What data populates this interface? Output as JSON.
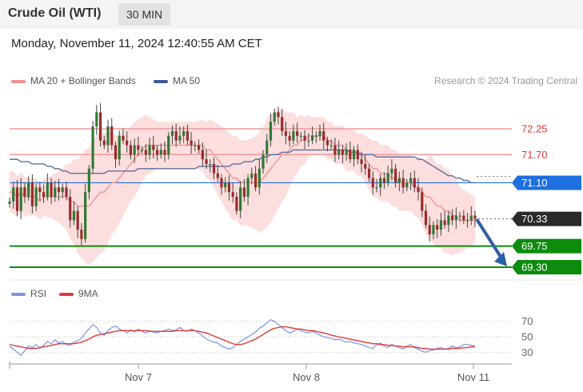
{
  "header": {
    "title": "Crude Oil (WTI)",
    "timeframe": "30 MIN"
  },
  "datetime": "Monday, November 11, 2024 12:40:55 AM CET",
  "legend": {
    "ma20_label": "MA 20 + Bollinger Bands",
    "ma50_label": "MA 50",
    "credit": "Research © 2024 Trading Central",
    "rsi_label": "RSI",
    "ma9_label": "9MA"
  },
  "colors": {
    "ma20": "#f08f8f",
    "bands": "#fcd8d8",
    "ma50": "#5b6f9e",
    "bull": "#2f7a33",
    "bear": "#9c2b2b",
    "support": "#0d8b0d",
    "pivot": "#1e6fe0",
    "last": "#2a2a2a",
    "resistance": "#ef9a9a",
    "rsi": "#7c95e6",
    "ma9": "#e03a3a",
    "arrow": "#2f5ea8"
  },
  "chart_data": {
    "type": "candlestick",
    "x_ticks": [
      "Nov 7",
      "Nov 8",
      "Nov 11"
    ],
    "levels": [
      {
        "name": "resistance-2",
        "value": 72.25,
        "label": "72.25",
        "kind": "resistance"
      },
      {
        "name": "resistance-1",
        "value": 71.7,
        "label": "71.70",
        "kind": "resistance"
      },
      {
        "name": "pivot",
        "value": 71.1,
        "label": "71.10",
        "kind": "pivot"
      },
      {
        "name": "last-price",
        "value": 70.33,
        "label": "70.33",
        "kind": "last"
      },
      {
        "name": "support-1",
        "value": 69.75,
        "label": "69.75",
        "kind": "support"
      },
      {
        "name": "support-2",
        "value": 69.3,
        "label": "69.30",
        "kind": "support"
      }
    ],
    "close": [
      70.7,
      71.0,
      70.5,
      71.0,
      70.8,
      71.1,
      70.6,
      71.0,
      70.9,
      70.8,
      71.1,
      70.8,
      71.0,
      70.9,
      71.0,
      70.8,
      70.3,
      70.5,
      70.1,
      69.9,
      70.9,
      71.4,
      72.3,
      72.6,
      72.0,
      71.9,
      72.3,
      71.9,
      71.6,
      72.1,
      72.0,
      71.9,
      71.7,
      71.9,
      71.8,
      71.8,
      71.7,
      71.9,
      71.8,
      71.7,
      71.8,
      71.7,
      72.1,
      72.2,
      72.0,
      72.1,
      72.2,
      72.0,
      71.9,
      71.9,
      71.8,
      71.6,
      71.5,
      71.5,
      71.3,
      71.2,
      71.0,
      71.1,
      70.9,
      70.8,
      70.5,
      71.0,
      70.8,
      71.2,
      71.3,
      71.0,
      71.4,
      71.7,
      72.0,
      72.4,
      72.6,
      72.5,
      72.2,
      72.1,
      72.0,
      72.2,
      72.1,
      72.1,
      72.0,
      72.0,
      72.1,
      72.1,
      72.2,
      72.0,
      71.9,
      71.9,
      71.7,
      71.8,
      71.7,
      71.8,
      71.6,
      71.8,
      71.6,
      71.5,
      71.4,
      71.2,
      71.0,
      71.0,
      71.2,
      71.1,
      71.3,
      71.4,
      71.1,
      71.2,
      71.0,
      71.1,
      71.2,
      71.0,
      70.9,
      70.5,
      70.2,
      70.0,
      70.2,
      70.1,
      70.3,
      70.2,
      70.4,
      70.3,
      70.4,
      70.4,
      70.3,
      70.3,
      70.4,
      70.33
    ],
    "ma20": [
      70.9,
      70.9,
      70.8,
      70.9,
      70.8,
      70.8,
      70.8,
      70.8,
      70.7,
      70.8,
      70.8,
      70.8,
      70.8,
      70.8,
      70.8,
      70.8,
      70.7,
      70.7,
      70.6,
      70.6,
      70.6,
      70.6,
      70.7,
      70.8,
      70.9,
      70.9,
      71.0,
      71.1,
      71.1,
      71.2,
      71.3,
      71.4,
      71.5,
      71.6,
      71.7,
      71.8,
      71.9,
      71.9,
      71.9,
      71.9,
      71.9,
      71.9,
      71.9,
      71.9,
      71.9,
      71.9,
      71.9,
      71.9,
      71.9,
      71.9,
      71.9,
      71.9,
      71.8,
      71.8,
      71.7,
      71.6,
      71.5,
      71.4,
      71.3,
      71.2,
      71.2,
      71.1,
      71.1,
      71.1,
      71.1,
      71.1,
      71.1,
      71.2,
      71.3,
      71.4,
      71.5,
      71.6,
      71.7,
      71.7,
      71.8,
      71.9,
      71.9,
      72.0,
      72.0,
      72.1,
      72.1,
      72.1,
      72.1,
      72.1,
      72.0,
      72.0,
      71.9,
      71.9,
      71.9,
      71.8,
      71.8,
      71.8,
      71.7,
      71.7,
      71.6,
      71.5,
      71.4,
      71.4,
      71.3,
      71.3,
      71.3,
      71.2,
      71.2,
      71.1,
      71.1,
      71.1,
      71.1,
      71.0,
      71.0,
      70.9,
      70.8,
      70.8,
      70.7,
      70.6,
      70.6,
      70.5,
      70.5,
      70.4,
      70.4,
      70.3,
      70.3,
      70.3,
      70.3,
      70.3
    ],
    "band_width": [
      0.45,
      0.45,
      0.44,
      0.43,
      0.42,
      0.4,
      0.4,
      0.4,
      0.4,
      0.4,
      0.42,
      0.45,
      0.5,
      0.55,
      0.62,
      0.7,
      0.8,
      0.9,
      1.0,
      1.1,
      1.2,
      1.25,
      1.3,
      1.3,
      1.3,
      1.25,
      1.2,
      1.1,
      1.0,
      0.95,
      0.9,
      0.85,
      0.8,
      0.8,
      0.75,
      0.7,
      0.65,
      0.6,
      0.55,
      0.5,
      0.5,
      0.5,
      0.5,
      0.5,
      0.5,
      0.5,
      0.5,
      0.5,
      0.5,
      0.5,
      0.52,
      0.55,
      0.6,
      0.65,
      0.7,
      0.75,
      0.8,
      0.85,
      0.88,
      0.9,
      0.9,
      0.9,
      0.9,
      0.92,
      0.95,
      1.0,
      1.05,
      1.1,
      1.15,
      1.15,
      1.1,
      1.05,
      1.0,
      0.9,
      0.8,
      0.7,
      0.6,
      0.55,
      0.5,
      0.45,
      0.4,
      0.4,
      0.4,
      0.4,
      0.4,
      0.4,
      0.4,
      0.4,
      0.42,
      0.45,
      0.45,
      0.45,
      0.45,
      0.45,
      0.5,
      0.55,
      0.6,
      0.6,
      0.6,
      0.6,
      0.6,
      0.6,
      0.6,
      0.6,
      0.6,
      0.6,
      0.6,
      0.6,
      0.65,
      0.7,
      0.8,
      0.9,
      0.9,
      0.9,
      0.9,
      0.9,
      0.9,
      0.85,
      0.8,
      0.7,
      0.65,
      0.6,
      0.55,
      0.5
    ],
    "ma50": [
      71.6,
      71.6,
      71.6,
      71.55,
      71.55,
      71.55,
      71.5,
      71.5,
      71.5,
      71.5,
      71.45,
      71.45,
      71.4,
      71.4,
      71.35,
      71.35,
      71.3,
      71.3,
      71.3,
      71.3,
      71.3,
      71.3,
      71.3,
      71.3,
      71.3,
      71.3,
      71.35,
      71.35,
      71.35,
      71.35,
      71.35,
      71.35,
      71.35,
      71.35,
      71.4,
      71.4,
      71.4,
      71.4,
      71.4,
      71.4,
      71.4,
      71.4,
      71.4,
      71.4,
      71.4,
      71.4,
      71.4,
      71.4,
      71.4,
      71.4,
      71.45,
      71.45,
      71.45,
      71.45,
      71.45,
      71.45,
      71.45,
      71.45,
      71.45,
      71.5,
      71.5,
      71.5,
      71.55,
      71.55,
      71.55,
      71.6,
      71.6,
      71.65,
      71.65,
      71.7,
      71.7,
      71.7,
      71.75,
      71.75,
      71.75,
      71.8,
      71.8,
      71.8,
      71.8,
      71.8,
      71.8,
      71.8,
      71.8,
      71.8,
      71.8,
      71.8,
      71.8,
      71.8,
      71.8,
      71.8,
      71.75,
      71.75,
      71.75,
      71.7,
      71.7,
      71.7,
      71.7,
      71.65,
      71.65,
      71.65,
      71.65,
      71.65,
      71.65,
      71.65,
      71.65,
      71.65,
      71.65,
      71.65,
      71.6,
      71.6,
      71.55,
      71.5,
      71.45,
      71.4,
      71.35,
      71.3,
      71.25,
      71.25,
      71.2,
      71.2,
      71.15,
      71.15,
      71.1,
      71.1
    ],
    "rsi": {
      "y_ticks": [
        70,
        50,
        30
      ],
      "ylim": [
        20,
        80
      ],
      "rsi": [
        38,
        34,
        30,
        26,
        32,
        38,
        36,
        40,
        35,
        39,
        44,
        41,
        46,
        42,
        44,
        40,
        39,
        43,
        45,
        48,
        55,
        60,
        66,
        62,
        55,
        52,
        58,
        62,
        64,
        60,
        58,
        55,
        59,
        56,
        60,
        57,
        55,
        58,
        56,
        55,
        57,
        58,
        60,
        58,
        59,
        62,
        58,
        57,
        60,
        58,
        55,
        51,
        47,
        45,
        43,
        42,
        38,
        36,
        34,
        36,
        40,
        44,
        47,
        50,
        53,
        56,
        61,
        64,
        68,
        72,
        70,
        66,
        62,
        58,
        55,
        57,
        60,
        58,
        56,
        55,
        57,
        55,
        52,
        50,
        49,
        48,
        46,
        47,
        45,
        43,
        44,
        42,
        41,
        40,
        38,
        36,
        35,
        40,
        42,
        38,
        36,
        40,
        38,
        36,
        34,
        38,
        40,
        36,
        34,
        31,
        30,
        32,
        33,
        35,
        36,
        34,
        35,
        38,
        36,
        37,
        40,
        40,
        39,
        38
      ],
      "ma9": [
        40,
        39,
        38,
        37,
        36,
        35,
        35,
        35,
        36,
        37,
        38,
        39,
        40,
        41,
        41,
        41,
        41,
        41,
        42,
        43,
        45,
        47,
        50,
        52,
        53,
        54,
        55,
        56,
        57,
        58,
        58,
        58,
        58,
        58,
        58,
        58,
        58,
        57,
        57,
        57,
        57,
        57,
        57,
        57,
        58,
        58,
        58,
        58,
        58,
        58,
        57,
        56,
        55,
        53,
        51,
        49,
        47,
        45,
        43,
        41,
        40,
        40,
        41,
        43,
        45,
        47,
        50,
        53,
        56,
        59,
        61,
        62,
        63,
        63,
        62,
        61,
        60,
        60,
        59,
        58,
        58,
        57,
        56,
        55,
        54,
        52,
        51,
        50,
        49,
        48,
        47,
        46,
        45,
        44,
        43,
        42,
        41,
        41,
        40,
        40,
        39,
        39,
        38,
        38,
        37,
        37,
        37,
        37,
        36,
        35,
        35,
        34,
        34,
        34,
        34,
        34,
        34,
        35,
        35,
        35,
        36,
        36,
        37,
        37
      ]
    }
  }
}
